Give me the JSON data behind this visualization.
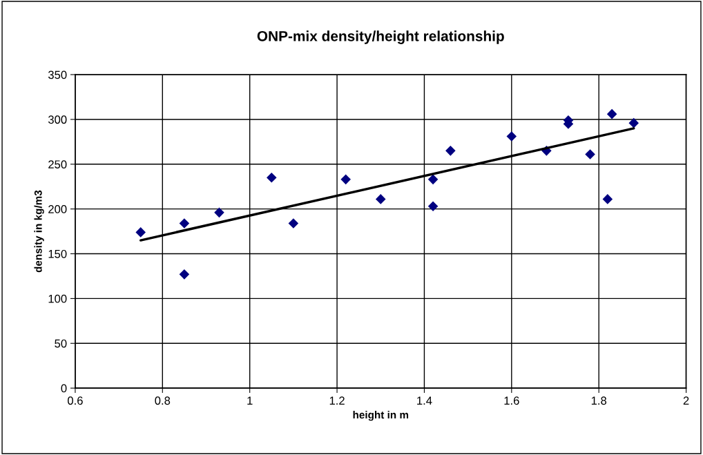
{
  "chart_data": {
    "type": "scatter",
    "title": "ONP-mix density/height relationship",
    "xlabel": "height in m",
    "ylabel": "density in kg/m3",
    "xlim": [
      0.6,
      2
    ],
    "xticks": [
      0.6,
      0.8,
      1,
      1.2,
      1.4,
      1.6,
      1.8,
      2
    ],
    "ylim": [
      0,
      350
    ],
    "yticks": [
      0,
      50,
      100,
      150,
      200,
      250,
      300,
      350
    ],
    "grid": true,
    "legend": false,
    "marker": "diamond",
    "series": [
      {
        "color": "#000080",
        "x": [
          0.75,
          0.85,
          0.85,
          0.93,
          1.05,
          1.1,
          1.22,
          1.3,
          1.42,
          1.42,
          1.46,
          1.6,
          1.68,
          1.73,
          1.73,
          1.78,
          1.82,
          1.83,
          1.88
        ],
        "values": [
          174,
          184,
          127,
          196,
          235,
          184,
          233,
          211,
          233,
          203,
          265,
          281,
          265,
          299,
          295,
          261,
          211,
          306,
          296
        ]
      },
      {
        "type": "line",
        "color": "#000000",
        "marker": "none",
        "line_style": "solid",
        "x": [
          0.75,
          1.88
        ],
        "values": [
          165,
          290
        ]
      }
    ]
  }
}
